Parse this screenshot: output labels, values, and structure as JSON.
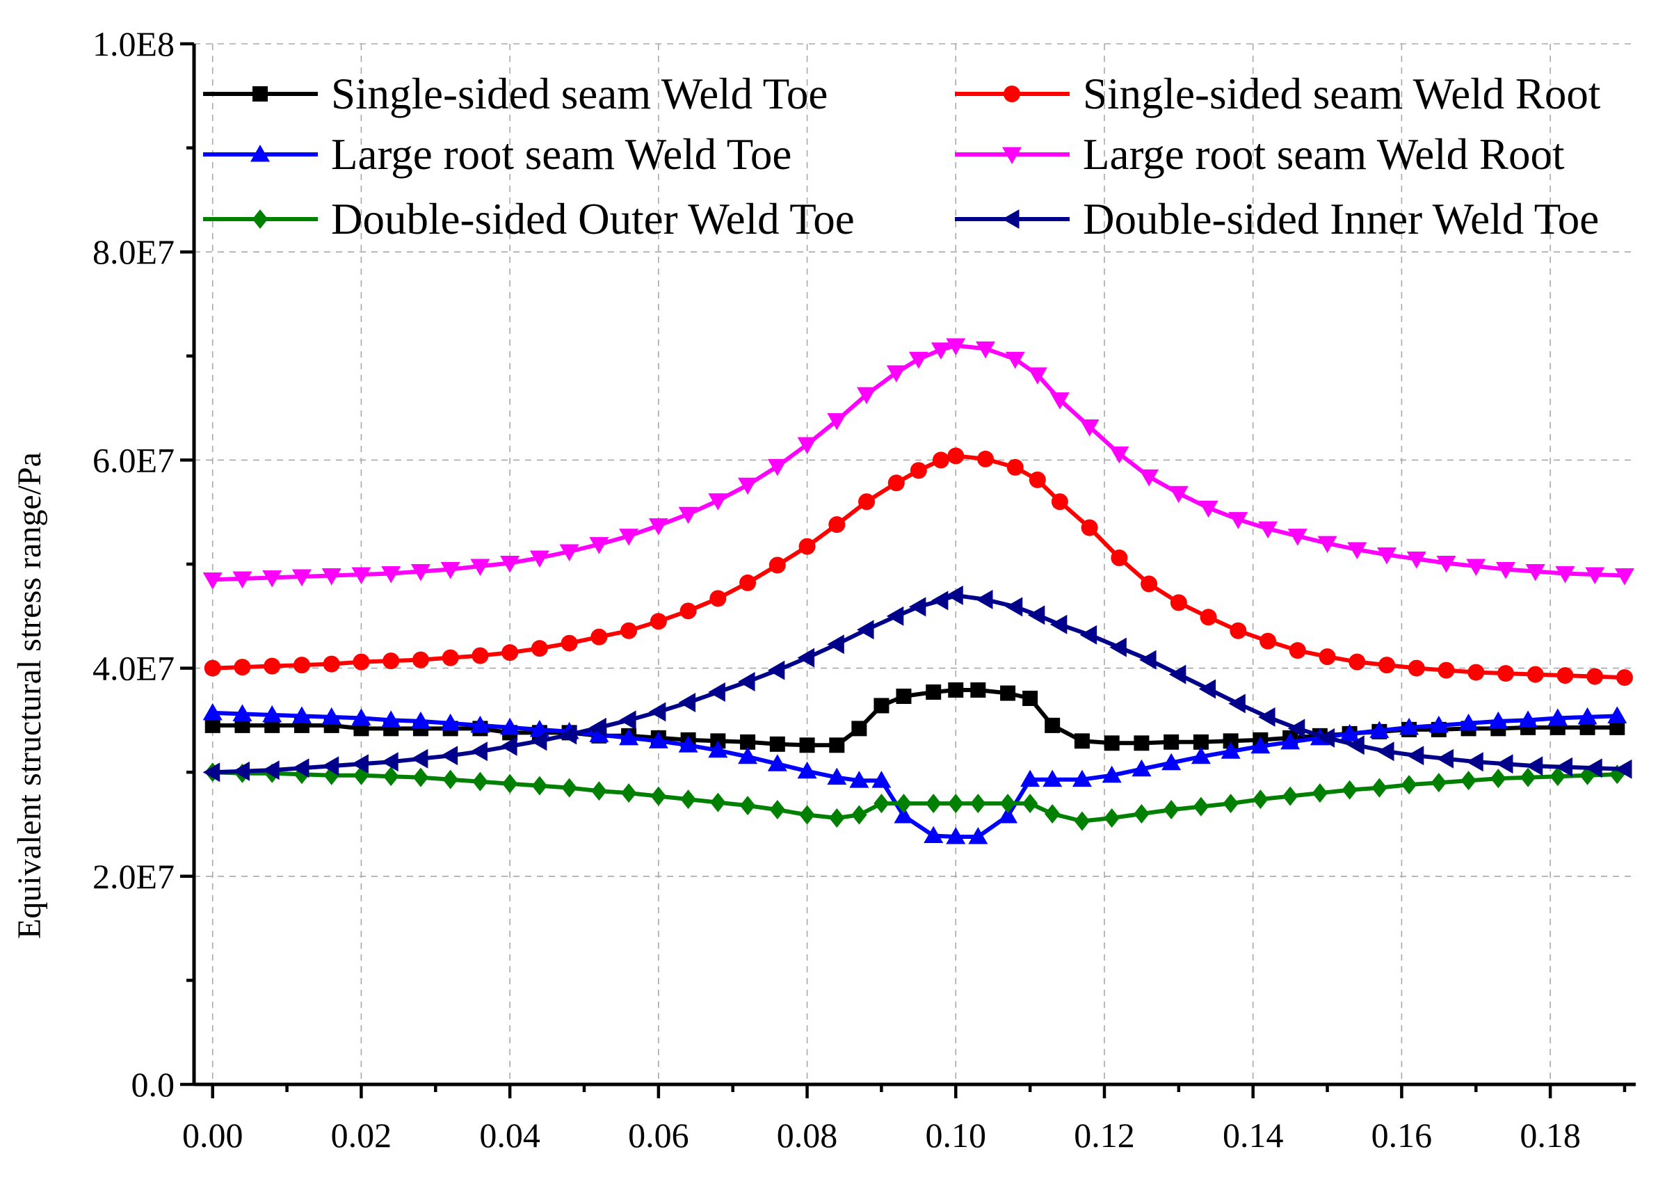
{
  "chart_data": {
    "type": "line",
    "title": "",
    "xlabel": "",
    "ylabel": "Equivalent structural stress range/Pa",
    "xlim": [
      -0.0025,
      0.1915
    ],
    "ylim": [
      0,
      100000000
    ],
    "x_ticks": [
      0.0,
      0.02,
      0.04,
      0.06,
      0.08,
      0.1,
      0.12,
      0.14,
      0.16,
      0.18
    ],
    "x_tick_labels": [
      "0.00",
      "0.02",
      "0.04",
      "0.06",
      "0.08",
      "0.10",
      "0.12",
      "0.14",
      "0.16",
      "0.18"
    ],
    "y_ticks": [
      0,
      20000000,
      40000000,
      60000000,
      80000000,
      100000000
    ],
    "y_tick_labels": [
      "0.0",
      "2.0E7",
      "4.0E7",
      "6.0E7",
      "8.0E7",
      "1.0E8"
    ],
    "grid": true,
    "legend_position": "top",
    "series": [
      {
        "name": "Single-sided seam Weld Toe",
        "color": "#000000",
        "marker": "square",
        "x": [
          0.0,
          0.004,
          0.008,
          0.012,
          0.016,
          0.02,
          0.024,
          0.028,
          0.032,
          0.036,
          0.04,
          0.044,
          0.048,
          0.052,
          0.056,
          0.06,
          0.064,
          0.068,
          0.072,
          0.076,
          0.08,
          0.084,
          0.087,
          0.09,
          0.093,
          0.097,
          0.1,
          0.103,
          0.107,
          0.11,
          0.113,
          0.117,
          0.121,
          0.125,
          0.129,
          0.133,
          0.137,
          0.141,
          0.145,
          0.149,
          0.153,
          0.157,
          0.161,
          0.165,
          0.169,
          0.173,
          0.177,
          0.181,
          0.185,
          0.189
        ],
        "values": [
          34500000,
          34500000,
          34500000,
          34500000,
          34500000,
          34200000,
          34200000,
          34200000,
          34200000,
          34200000,
          33800000,
          33800000,
          33800000,
          33500000,
          33500000,
          33300000,
          33100000,
          33000000,
          32900000,
          32700000,
          32600000,
          32600000,
          34200000,
          36400000,
          37300000,
          37700000,
          37900000,
          37900000,
          37600000,
          37100000,
          34500000,
          33000000,
          32800000,
          32800000,
          32900000,
          32900000,
          33000000,
          33100000,
          33300000,
          33500000,
          33700000,
          33900000,
          34100000,
          34100000,
          34200000,
          34200000,
          34300000,
          34300000,
          34300000,
          34300000
        ]
      },
      {
        "name": "Single-sided seam Weld Root",
        "color": "#ff0000",
        "marker": "circle",
        "x": [
          0.0,
          0.004,
          0.008,
          0.012,
          0.016,
          0.02,
          0.024,
          0.028,
          0.032,
          0.036,
          0.04,
          0.044,
          0.048,
          0.052,
          0.056,
          0.06,
          0.064,
          0.068,
          0.072,
          0.076,
          0.08,
          0.084,
          0.088,
          0.092,
          0.095,
          0.098,
          0.1,
          0.104,
          0.108,
          0.111,
          0.114,
          0.118,
          0.122,
          0.126,
          0.13,
          0.134,
          0.138,
          0.142,
          0.146,
          0.15,
          0.154,
          0.158,
          0.162,
          0.166,
          0.17,
          0.174,
          0.178,
          0.182,
          0.186,
          0.19
        ],
        "values": [
          40000000,
          40100000,
          40200000,
          40300000,
          40400000,
          40600000,
          40700000,
          40800000,
          41000000,
          41200000,
          41500000,
          41900000,
          42400000,
          43000000,
          43600000,
          44500000,
          45500000,
          46700000,
          48200000,
          49900000,
          51700000,
          53800000,
          56000000,
          57800000,
          59000000,
          60000000,
          60400000,
          60100000,
          59300000,
          58100000,
          56000000,
          53500000,
          50600000,
          48100000,
          46300000,
          44900000,
          43600000,
          42600000,
          41700000,
          41100000,
          40600000,
          40300000,
          40000000,
          39800000,
          39600000,
          39500000,
          39400000,
          39300000,
          39200000,
          39100000
        ]
      },
      {
        "name": "Large root seam Weld Toe",
        "color": "#0000ff",
        "marker": "triangle-up",
        "x": [
          0.0,
          0.004,
          0.008,
          0.012,
          0.016,
          0.02,
          0.024,
          0.028,
          0.032,
          0.036,
          0.04,
          0.044,
          0.048,
          0.052,
          0.056,
          0.06,
          0.064,
          0.068,
          0.072,
          0.076,
          0.08,
          0.084,
          0.087,
          0.09,
          0.093,
          0.097,
          0.1,
          0.103,
          0.107,
          0.11,
          0.113,
          0.117,
          0.121,
          0.125,
          0.129,
          0.133,
          0.137,
          0.141,
          0.145,
          0.149,
          0.153,
          0.157,
          0.161,
          0.165,
          0.169,
          0.173,
          0.177,
          0.181,
          0.185,
          0.189
        ],
        "values": [
          35700000,
          35600000,
          35500000,
          35400000,
          35300000,
          35200000,
          35000000,
          34900000,
          34700000,
          34500000,
          34300000,
          34100000,
          33900000,
          33600000,
          33300000,
          33000000,
          32600000,
          32100000,
          31500000,
          30800000,
          30100000,
          29500000,
          29200000,
          29200000,
          25800000,
          23900000,
          23800000,
          23800000,
          25800000,
          29300000,
          29300000,
          29300000,
          29700000,
          30300000,
          30900000,
          31500000,
          32000000,
          32500000,
          32900000,
          33300000,
          33700000,
          34000000,
          34300000,
          34500000,
          34700000,
          34900000,
          35000000,
          35200000,
          35300000,
          35400000
        ]
      },
      {
        "name": "Large root seam Weld Root",
        "color": "#ff00ff",
        "marker": "triangle-down",
        "x": [
          0.0,
          0.004,
          0.008,
          0.012,
          0.016,
          0.02,
          0.024,
          0.028,
          0.032,
          0.036,
          0.04,
          0.044,
          0.048,
          0.052,
          0.056,
          0.06,
          0.064,
          0.068,
          0.072,
          0.076,
          0.08,
          0.084,
          0.088,
          0.092,
          0.095,
          0.098,
          0.1,
          0.104,
          0.108,
          0.111,
          0.114,
          0.118,
          0.122,
          0.126,
          0.13,
          0.134,
          0.138,
          0.142,
          0.146,
          0.15,
          0.154,
          0.158,
          0.162,
          0.166,
          0.17,
          0.174,
          0.178,
          0.182,
          0.186,
          0.19
        ],
        "values": [
          48500000,
          48600000,
          48700000,
          48800000,
          48900000,
          49000000,
          49100000,
          49300000,
          49500000,
          49800000,
          50100000,
          50600000,
          51200000,
          51900000,
          52700000,
          53700000,
          54800000,
          56100000,
          57600000,
          59400000,
          61500000,
          63800000,
          66300000,
          68400000,
          69700000,
          70600000,
          71000000,
          70700000,
          69700000,
          68200000,
          65800000,
          63200000,
          60600000,
          58400000,
          56800000,
          55400000,
          54300000,
          53400000,
          52700000,
          52000000,
          51400000,
          50900000,
          50500000,
          50100000,
          49800000,
          49500000,
          49300000,
          49100000,
          49000000,
          48900000
        ]
      },
      {
        "name": "Double-sided Outer Weld Toe",
        "color": "#008000",
        "marker": "diamond",
        "x": [
          0.0,
          0.004,
          0.008,
          0.012,
          0.016,
          0.02,
          0.024,
          0.028,
          0.032,
          0.036,
          0.04,
          0.044,
          0.048,
          0.052,
          0.056,
          0.06,
          0.064,
          0.068,
          0.072,
          0.076,
          0.08,
          0.084,
          0.087,
          0.09,
          0.093,
          0.097,
          0.1,
          0.103,
          0.107,
          0.11,
          0.113,
          0.117,
          0.121,
          0.125,
          0.129,
          0.133,
          0.137,
          0.141,
          0.145,
          0.149,
          0.153,
          0.157,
          0.161,
          0.165,
          0.169,
          0.173,
          0.177,
          0.181,
          0.185,
          0.189
        ],
        "values": [
          30000000,
          29900000,
          29900000,
          29800000,
          29700000,
          29700000,
          29600000,
          29500000,
          29300000,
          29100000,
          28900000,
          28700000,
          28500000,
          28200000,
          28000000,
          27700000,
          27400000,
          27100000,
          26800000,
          26400000,
          25900000,
          25600000,
          25900000,
          27000000,
          27000000,
          27000000,
          27000000,
          27000000,
          27000000,
          27000000,
          26000000,
          25300000,
          25600000,
          26000000,
          26400000,
          26700000,
          27000000,
          27400000,
          27700000,
          28000000,
          28300000,
          28500000,
          28800000,
          29000000,
          29200000,
          29400000,
          29500000,
          29600000,
          29700000,
          29800000
        ]
      },
      {
        "name": "Double-sided Inner Weld Toe",
        "color": "#00008b",
        "marker": "triangle-left",
        "x": [
          0.0,
          0.004,
          0.008,
          0.012,
          0.016,
          0.02,
          0.024,
          0.028,
          0.032,
          0.036,
          0.04,
          0.044,
          0.048,
          0.052,
          0.056,
          0.06,
          0.064,
          0.068,
          0.072,
          0.076,
          0.08,
          0.084,
          0.088,
          0.092,
          0.095,
          0.098,
          0.1,
          0.104,
          0.108,
          0.111,
          0.114,
          0.118,
          0.122,
          0.126,
          0.13,
          0.134,
          0.138,
          0.142,
          0.146,
          0.15,
          0.154,
          0.158,
          0.162,
          0.166,
          0.17,
          0.174,
          0.178,
          0.182,
          0.186,
          0.19
        ],
        "values": [
          30000000,
          30100000,
          30200000,
          30400000,
          30600000,
          30800000,
          31000000,
          31300000,
          31600000,
          32000000,
          32500000,
          33000000,
          33600000,
          34300000,
          35000000,
          35800000,
          36700000,
          37700000,
          38700000,
          39800000,
          41000000,
          42300000,
          43700000,
          45000000,
          45900000,
          46500000,
          47000000,
          46600000,
          45900000,
          45100000,
          44200000,
          43200000,
          42000000,
          40800000,
          39400000,
          38000000,
          36600000,
          35300000,
          34200000,
          33300000,
          32600000,
          32000000,
          31600000,
          31300000,
          31000000,
          30800000,
          30600000,
          30500000,
          30400000,
          30300000
        ]
      }
    ]
  }
}
